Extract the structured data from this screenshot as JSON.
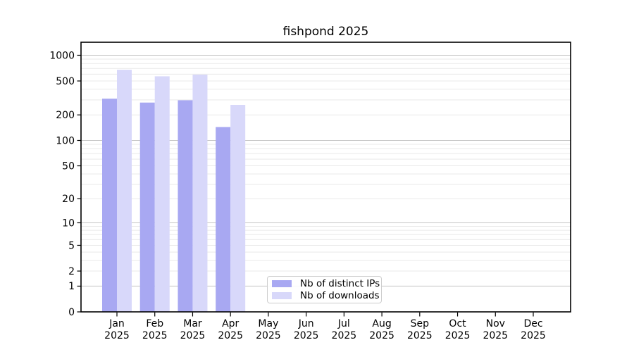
{
  "chart_data": {
    "type": "bar",
    "title": "fishpond 2025",
    "year_label": "2025",
    "categories": [
      "Jan",
      "Feb",
      "Mar",
      "Apr",
      "May",
      "Jun",
      "Jul",
      "Aug",
      "Sep",
      "Oct",
      "Nov",
      "Dec"
    ],
    "series": [
      {
        "name": "Nb of distinct IPs",
        "color": "#a8a8f2",
        "values": [
          310,
          279,
          297,
          144,
          null,
          null,
          null,
          null,
          null,
          null,
          null,
          null
        ]
      },
      {
        "name": "Nb of downloads",
        "color": "#d8d8fa",
        "values": [
          676,
          567,
          593,
          262,
          null,
          null,
          null,
          null,
          null,
          null,
          null,
          null
        ]
      }
    ],
    "yticks": [
      0,
      1,
      2,
      5,
      10,
      20,
      50,
      100,
      200,
      500,
      1000
    ],
    "ylim": [
      0,
      1420
    ],
    "yscale": "log1p",
    "grid": true,
    "legend_position": "bottom-center-inside"
  },
  "colors": {
    "bar_distinct_ips": "#a8a8f2",
    "bar_downloads": "#d8d8fa",
    "grid_minor": "#e9e9e9",
    "grid_major": "#c6c6c6",
    "axis": "#000000",
    "legend_border": "#cccccc",
    "background": "#ffffff"
  }
}
